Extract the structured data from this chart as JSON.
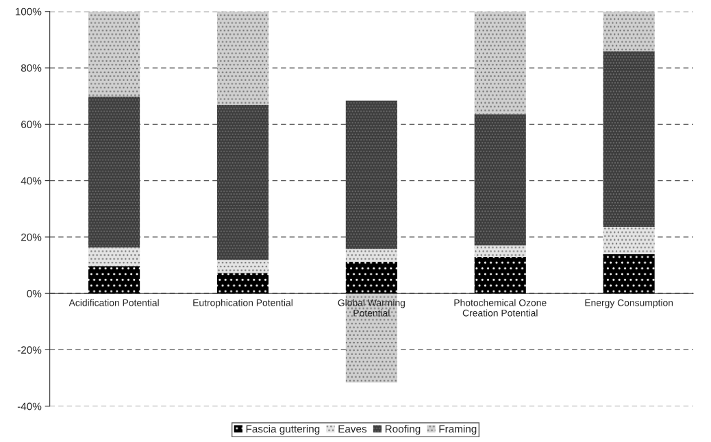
{
  "chart_data": {
    "type": "bar",
    "stacked": true,
    "categories": [
      "Acidification Potential",
      "Eutrophication Potential",
      "Global Warming\nPotential",
      "Photochemical Ozone\nCreation Potential",
      "Energy Consumption"
    ],
    "series": [
      {
        "name": "Fascia guttering",
        "color": "#000000",
        "values": [
          9.7,
          7.3,
          11.2,
          12.9,
          13.9
        ]
      },
      {
        "name": "Eaves",
        "color": "#e4e4e4",
        "values": [
          6.6,
          4.6,
          4.6,
          4.1,
          9.7
        ]
      },
      {
        "name": "Roofing",
        "color": "#3c3c3c",
        "values": [
          53.5,
          55.0,
          52.6,
          46.6,
          62.3
        ]
      },
      {
        "name": "Framing",
        "color": "#d0d0d0",
        "values": [
          30.2,
          33.1,
          -31.6,
          36.4,
          14.1
        ]
      }
    ],
    "ylim": [
      -40,
      100
    ],
    "yticks": [
      {
        "value": -40,
        "label": "-40%"
      },
      {
        "value": -20,
        "label": "-20%"
      },
      {
        "value": 0,
        "label": "0%"
      },
      {
        "value": 20,
        "label": "20%"
      },
      {
        "value": 40,
        "label": "40%"
      },
      {
        "value": 60,
        "label": "60%"
      },
      {
        "value": 80,
        "label": "80%"
      },
      {
        "value": 100,
        "label": "100%"
      }
    ],
    "grid": "y",
    "legend": "bottom"
  }
}
